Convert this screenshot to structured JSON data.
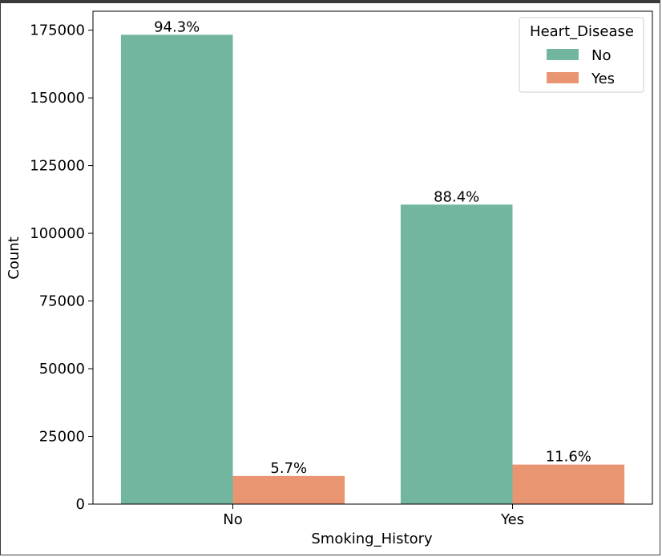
{
  "chart_data": {
    "type": "bar",
    "title": "",
    "xlabel": "Smoking_History",
    "ylabel": "Count",
    "ylim": [
      0,
      182000
    ],
    "yticks": [
      0,
      25000,
      50000,
      75000,
      100000,
      125000,
      150000,
      175000
    ],
    "categories": [
      "No",
      "Yes"
    ],
    "legend": {
      "title": "Heart_Disease",
      "placement": "top-right"
    },
    "grid": false,
    "series": [
      {
        "name": "No",
        "color": "#73b6a0",
        "values": [
          173300,
          110600
        ],
        "labels": [
          "94.3%",
          "88.4%"
        ]
      },
      {
        "name": "Yes",
        "color": "#e99572",
        "values": [
          10400,
          14600
        ],
        "labels": [
          "5.7%",
          "11.6%"
        ]
      }
    ]
  }
}
